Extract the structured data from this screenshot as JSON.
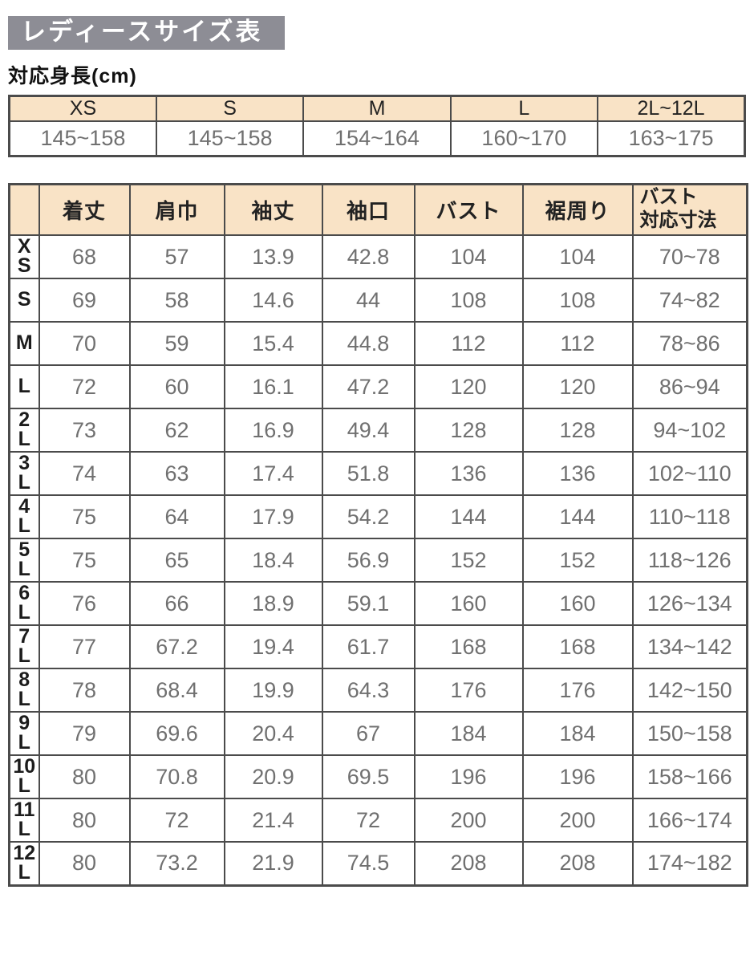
{
  "title": "レディースサイズ表",
  "colors": {
    "title_bg": "#8d8d95",
    "title_text": "#ffffff",
    "header_bg": "#f9e3c6",
    "border": "#4b4b4b",
    "data_text": "#707070",
    "label_text": "#1c1c1c"
  },
  "height_table": {
    "heading": "対応身長(cm)",
    "columns": [
      "XS",
      "S",
      "M",
      "L",
      "2L~12L"
    ],
    "values": [
      "145~158",
      "145~158",
      "154~164",
      "160~170",
      "163~175"
    ]
  },
  "size_table": {
    "corner_label": "",
    "columns": [
      "着丈",
      "肩巾",
      "袖丈",
      "袖口",
      "バスト",
      "裾周り",
      "バスト\n対応寸法"
    ],
    "rows": [
      {
        "size": "XS",
        "label": "X\nS",
        "values": [
          "68",
          "57",
          "13.9",
          "42.8",
          "104",
          "104",
          "70~78"
        ]
      },
      {
        "size": "S",
        "label": "S",
        "values": [
          "69",
          "58",
          "14.6",
          "44",
          "108",
          "108",
          "74~82"
        ]
      },
      {
        "size": "M",
        "label": "M",
        "values": [
          "70",
          "59",
          "15.4",
          "44.8",
          "112",
          "112",
          "78~86"
        ]
      },
      {
        "size": "L",
        "label": "L",
        "values": [
          "72",
          "60",
          "16.1",
          "47.2",
          "120",
          "120",
          "86~94"
        ]
      },
      {
        "size": "2L",
        "label": "2\nL",
        "values": [
          "73",
          "62",
          "16.9",
          "49.4",
          "128",
          "128",
          "94~102"
        ]
      },
      {
        "size": "3L",
        "label": "3\nL",
        "values": [
          "74",
          "63",
          "17.4",
          "51.8",
          "136",
          "136",
          "102~110"
        ]
      },
      {
        "size": "4L",
        "label": "4\nL",
        "values": [
          "75",
          "64",
          "17.9",
          "54.2",
          "144",
          "144",
          "110~118"
        ]
      },
      {
        "size": "5L",
        "label": "5\nL",
        "values": [
          "75",
          "65",
          "18.4",
          "56.9",
          "152",
          "152",
          "118~126"
        ]
      },
      {
        "size": "6L",
        "label": "6\nL",
        "values": [
          "76",
          "66",
          "18.9",
          "59.1",
          "160",
          "160",
          "126~134"
        ]
      },
      {
        "size": "7L",
        "label": "7\nL",
        "values": [
          "77",
          "67.2",
          "19.4",
          "61.7",
          "168",
          "168",
          "134~142"
        ]
      },
      {
        "size": "8L",
        "label": "8\nL",
        "values": [
          "78",
          "68.4",
          "19.9",
          "64.3",
          "176",
          "176",
          "142~150"
        ]
      },
      {
        "size": "9L",
        "label": "9\nL",
        "values": [
          "79",
          "69.6",
          "20.4",
          "67",
          "184",
          "184",
          "150~158"
        ]
      },
      {
        "size": "10L",
        "label": "10\nL",
        "values": [
          "80",
          "70.8",
          "20.9",
          "69.5",
          "196",
          "196",
          "158~166"
        ]
      },
      {
        "size": "11L",
        "label": "11\nL",
        "values": [
          "80",
          "72",
          "21.4",
          "72",
          "200",
          "200",
          "166~174"
        ]
      },
      {
        "size": "12L",
        "label": "12\nL",
        "values": [
          "80",
          "73.2",
          "21.9",
          "74.5",
          "208",
          "208",
          "174~182"
        ]
      }
    ]
  }
}
